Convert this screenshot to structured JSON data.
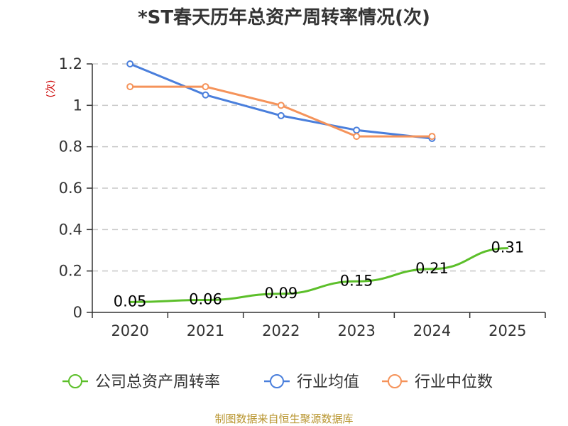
{
  "chart_data": {
    "type": "line",
    "title": "*ST春天历年总资产周转率情况(次)",
    "ylabel": "(次)",
    "xlabel": "",
    "categories": [
      "2020",
      "2021",
      "2022",
      "2023",
      "2024",
      "2025"
    ],
    "ylim": [
      0,
      1.2
    ],
    "yticks": [
      0,
      0.2,
      0.4,
      0.6,
      0.8,
      1,
      1.2
    ],
    "ytick_labels": [
      "0",
      "0.2",
      "0.4",
      "0.6",
      "0.8",
      "1",
      "1.2"
    ],
    "grid": true,
    "legend_position": "bottom",
    "series": [
      {
        "name": "公司总资产周转率",
        "color": "#5cbf2a",
        "values": [
          0.05,
          0.06,
          0.09,
          0.15,
          0.21,
          0.31
        ],
        "labels": [
          "0.05",
          "0.06",
          "0.09",
          "0.15",
          "0.21",
          "0.31"
        ],
        "show_markers": false,
        "show_labels": true
      },
      {
        "name": "行业均值",
        "color": "#4a7fdc",
        "values": [
          1.2,
          1.05,
          0.95,
          0.88,
          0.84,
          null
        ],
        "show_markers": true,
        "show_labels": false
      },
      {
        "name": "行业中位数",
        "color": "#f5935a",
        "values": [
          1.09,
          1.09,
          1.0,
          0.85,
          0.85,
          null
        ],
        "show_markers": true,
        "show_labels": false
      }
    ],
    "source": "制图数据来自恒生聚源数据库"
  }
}
